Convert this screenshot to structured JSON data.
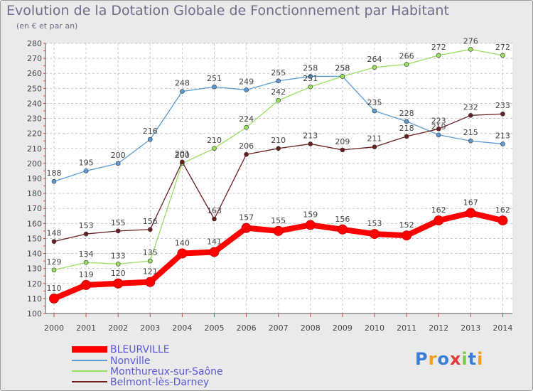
{
  "chart_data": {
    "type": "line",
    "title": "Evolution de la Dotation Globale de Fonctionnement par Habitant",
    "subtitle": "(en € et par an)",
    "categories": [
      "2000",
      "2001",
      "2002",
      "2003",
      "2004",
      "2005",
      "2006",
      "2007",
      "2008",
      "2009",
      "2010",
      "2011",
      "2012",
      "2013",
      "2014"
    ],
    "ylim": [
      100,
      280
    ],
    "yticks": [
      100,
      110,
      120,
      130,
      140,
      150,
      160,
      170,
      180,
      190,
      200,
      210,
      220,
      230,
      240,
      250,
      260,
      270,
      280
    ],
    "grid": true,
    "legend_position": "bottom-left",
    "series": [
      {
        "name": "BLEURVILLE",
        "color": "#ff0000",
        "values": [
          110,
          119,
          120,
          121,
          140,
          141,
          157,
          155,
          159,
          156,
          153,
          152,
          162,
          167,
          162
        ]
      },
      {
        "name": "Nonville",
        "color": "#5b9bd5",
        "values": [
          188,
          195,
          200,
          216,
          248,
          251,
          249,
          255,
          258,
          258,
          235,
          228,
          219,
          215,
          213
        ]
      },
      {
        "name": "Monthureux-sur-Saône",
        "color": "#99e060",
        "values": [
          129,
          134,
          133,
          135,
          200,
          210,
          224,
          242,
          251,
          258,
          264,
          266,
          272,
          276,
          272
        ]
      },
      {
        "name": "Belmont-lès-Darney",
        "color": "#6b1f1f",
        "values": [
          148,
          153,
          155,
          156,
          201,
          163,
          206,
          210,
          213,
          209,
          211,
          218,
          223,
          232,
          233
        ]
      }
    ]
  },
  "logo": {
    "text": "Proxiti"
  }
}
